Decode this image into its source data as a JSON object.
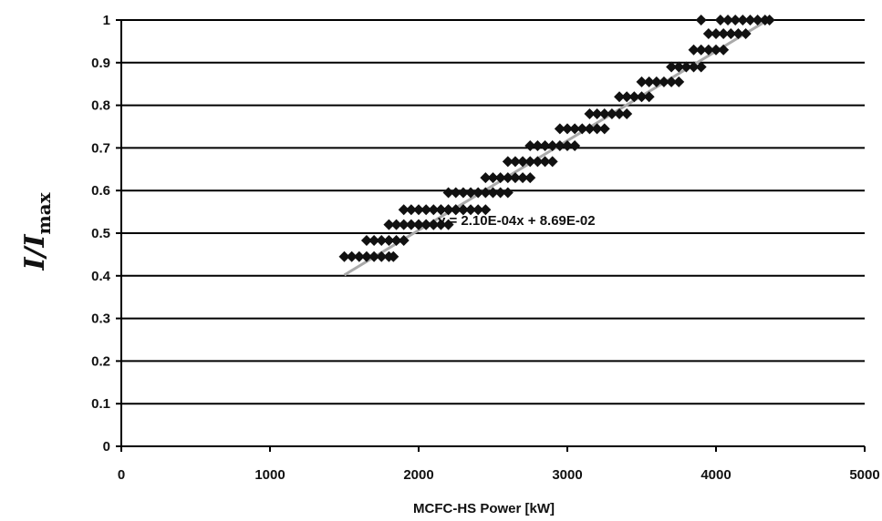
{
  "chart_data": {
    "type": "scatter",
    "title": "",
    "xlabel": "MCFC-HS Power [kW]",
    "ylabel": {
      "main": "I/I",
      "sub": "max"
    },
    "xlim": [
      0,
      5000
    ],
    "ylim": [
      0,
      1
    ],
    "xticks": [
      "0",
      "1000",
      "2000",
      "3000",
      "4000",
      "5000"
    ],
    "yticks": [
      "0",
      "0.1",
      "0.2",
      "0.3",
      "0.4",
      "0.5",
      "0.6",
      "0.7",
      "0.8",
      "0.9",
      "1"
    ],
    "grid": {
      "horizontal": true,
      "vertical": false
    },
    "legend": "none",
    "marker_color": "#111111",
    "trendline": {
      "label": "y = 2.10E-04x + 8.69E-02",
      "slope": 0.00021,
      "intercept": 0.0869,
      "x_range": [
        1500,
        4350
      ],
      "color": "#aaaaaa"
    },
    "series": [
      {
        "x": [
          1500,
          1550,
          1600,
          1650,
          1700,
          1750,
          1800,
          1830,
          1650,
          1700,
          1750,
          1800,
          1850,
          1900,
          1800,
          1850,
          1900,
          1950,
          2000,
          2050,
          2100,
          2150,
          2200,
          1900,
          1950,
          2000,
          2050,
          2100,
          2150,
          2200,
          2250,
          2300,
          2000,
          2050,
          2100,
          2150,
          2200,
          2250,
          2300,
          2350,
          2400,
          2450,
          2200,
          2250,
          2300,
          2350,
          2400,
          2450,
          2500,
          2550,
          2600,
          2450,
          2500,
          2550,
          2600,
          2650,
          2700,
          2750,
          2600,
          2650,
          2700,
          2750,
          2800,
          2850,
          2900,
          2750,
          2800,
          2850,
          2900,
          2950,
          3000,
          3050,
          2950,
          3000,
          3050,
          3100,
          3150,
          3200,
          3250,
          3150,
          3200,
          3250,
          3300,
          3350,
          3400,
          3350,
          3400,
          3450,
          3500,
          3550,
          3500,
          3550,
          3600,
          3650,
          3700,
          3750,
          3700,
          3750,
          3800,
          3850,
          3900,
          3850,
          3900,
          3950,
          4000,
          4050,
          3950,
          4000,
          4050,
          4100,
          4150,
          4200,
          3900,
          4030,
          4080,
          4130,
          4180,
          4230,
          4280,
          4330,
          4360
        ],
        "y": [
          0.445,
          0.445,
          0.445,
          0.445,
          0.445,
          0.445,
          0.445,
          0.445,
          0.483,
          0.483,
          0.483,
          0.483,
          0.483,
          0.483,
          0.52,
          0.52,
          0.52,
          0.52,
          0.52,
          0.52,
          0.52,
          0.52,
          0.52,
          0.555,
          0.555,
          0.555,
          0.555,
          0.555,
          0.555,
          0.555,
          0.555,
          0.555,
          0.52,
          0.52,
          0.52,
          0.555,
          0.555,
          0.555,
          0.555,
          0.555,
          0.555,
          0.555,
          0.595,
          0.595,
          0.595,
          0.595,
          0.595,
          0.595,
          0.595,
          0.595,
          0.595,
          0.63,
          0.63,
          0.63,
          0.63,
          0.63,
          0.63,
          0.63,
          0.668,
          0.668,
          0.668,
          0.668,
          0.668,
          0.668,
          0.668,
          0.705,
          0.705,
          0.705,
          0.705,
          0.705,
          0.705,
          0.705,
          0.745,
          0.745,
          0.745,
          0.745,
          0.745,
          0.745,
          0.745,
          0.78,
          0.78,
          0.78,
          0.78,
          0.78,
          0.78,
          0.82,
          0.82,
          0.82,
          0.82,
          0.82,
          0.855,
          0.855,
          0.855,
          0.855,
          0.855,
          0.855,
          0.89,
          0.89,
          0.89,
          0.89,
          0.89,
          0.93,
          0.93,
          0.93,
          0.93,
          0.93,
          0.968,
          0.968,
          0.968,
          0.968,
          0.968,
          0.968,
          1.0,
          1.0,
          1.0,
          1.0,
          1.0,
          1.0,
          1.0,
          1.0,
          1.0
        ]
      }
    ]
  }
}
